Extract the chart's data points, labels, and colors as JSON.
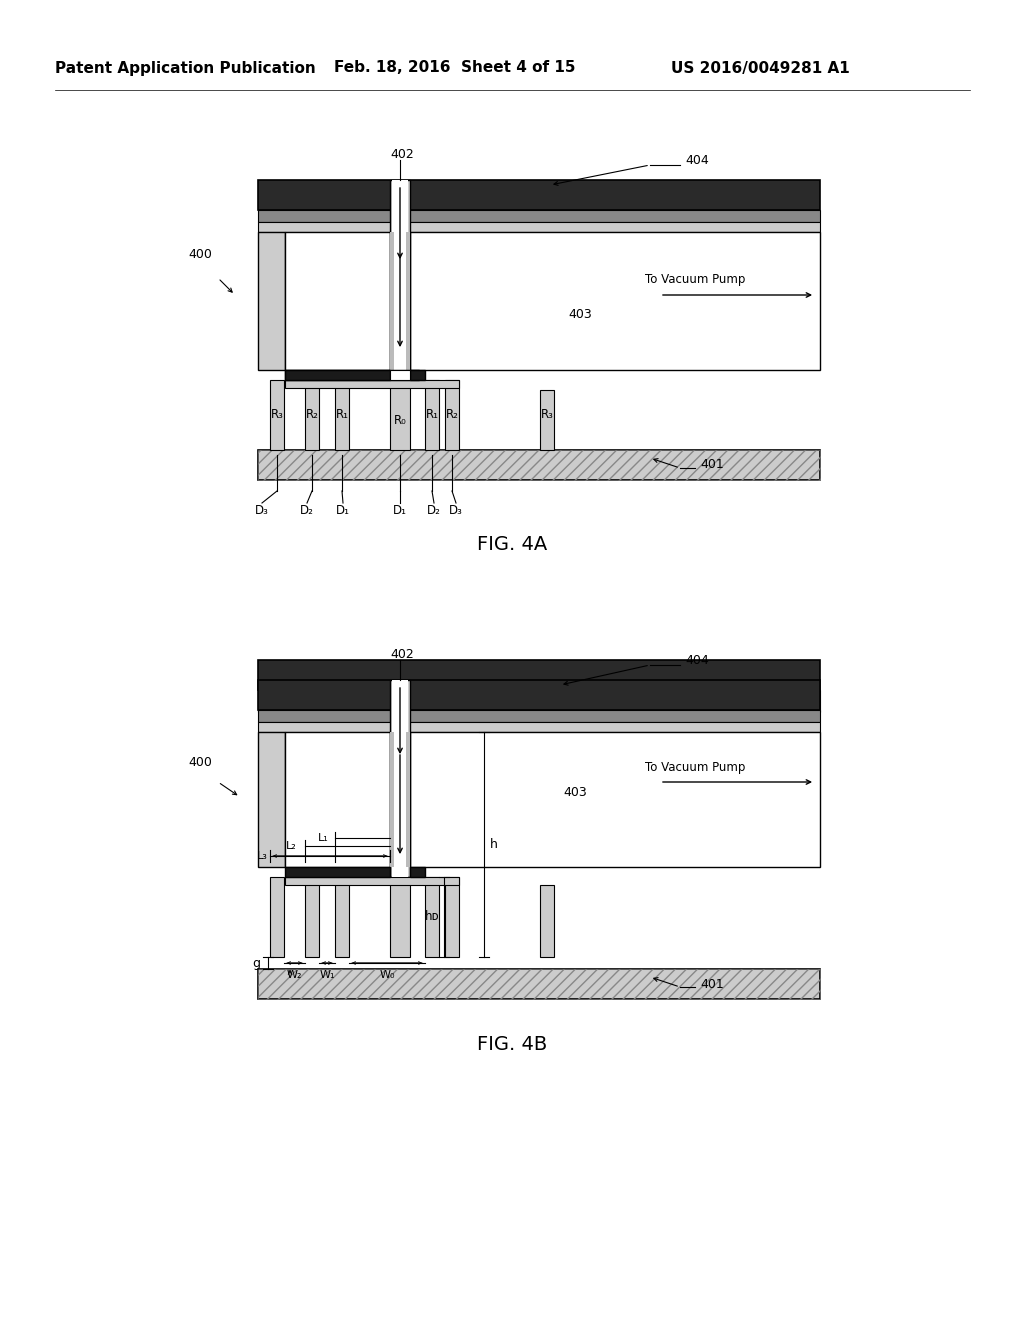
{
  "bg_color": "#ffffff",
  "header_left": "Patent Application Publication",
  "header_mid": "Feb. 18, 2016  Sheet 4 of 15",
  "header_right": "US 2016/0049281 A1",
  "fig4a_label": "FIG. 4A",
  "fig4b_label": "FIG. 4B",
  "col_dark": "#2d2d2d",
  "col_med_dark": "#555555",
  "col_gray": "#aaaaaa",
  "col_light_gray": "#cccccc",
  "col_lighter_gray": "#dddddd",
  "col_hatched": "#bbbbbb",
  "col_white": "#ffffff",
  "col_black": "#000000",
  "col_slot_gray": "#b8b8b8"
}
